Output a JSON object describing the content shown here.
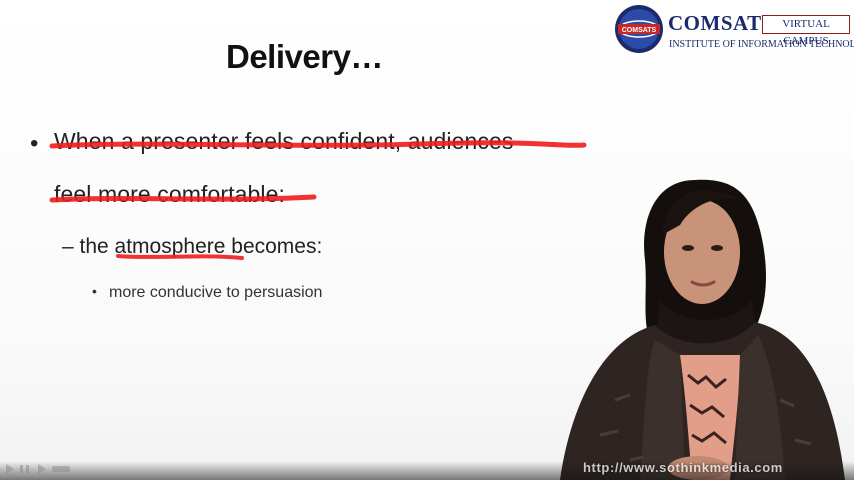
{
  "logo": {
    "name": "COMSATS",
    "emblem_text": "COMSATS",
    "badge": "VIRTUAL CAMPUS",
    "institute": "INSTITUTE OF INFORMATION TECHNOLOGY"
  },
  "slide": {
    "title": "Delivery…",
    "bullet_1_line_1": "When a presenter feels confident, audiences",
    "bullet_1_line_2": "feel more comfortable:",
    "sub_bullet": "– the atmosphere becomes:",
    "sub_sub_bullet": "more conducive to persuasion"
  },
  "colors": {
    "pen_red": "#ee1c1c",
    "logo_navy": "#1c2a6b",
    "logo_maroon": "#8b1d1d"
  },
  "watermark": "http://www.sothinkmedia.com"
}
